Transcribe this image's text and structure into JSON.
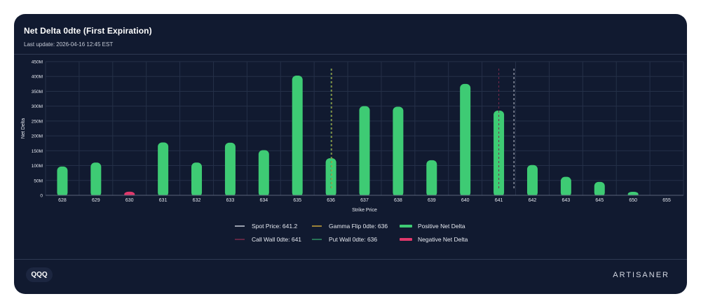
{
  "header": {
    "title": "Net Delta 0dte (First Expiration)",
    "subtitle": "Last update: 2026-04-16 12:45 EST"
  },
  "footer": {
    "ticker": "QQQ",
    "brand": "ARTISANER"
  },
  "colors": {
    "positive": "#3ecb74",
    "negative": "#e0386b",
    "spot": "#c9cdd8",
    "gamma_flip": "#caa53a",
    "call_wall": "#7a2a4a",
    "put_wall": "#2f8f63",
    "grid": "#253048"
  },
  "chart_data": {
    "type": "bar",
    "title": "Net Delta 0dte (First Expiration)",
    "xlabel": "Strike Price",
    "ylabel": "Net Delta",
    "ylim": [
      0,
      450
    ],
    "y_ticks": [
      "0",
      "50M",
      "100M",
      "150M",
      "200M",
      "250M",
      "300M",
      "350M",
      "400M",
      "450M"
    ],
    "categories": [
      "628",
      "629",
      "630",
      "631",
      "632",
      "633",
      "634",
      "635",
      "636",
      "637",
      "638",
      "639",
      "640",
      "641",
      "642",
      "643",
      "645",
      "650",
      "655"
    ],
    "values": [
      97,
      110,
      -12,
      178,
      110,
      177,
      152,
      403,
      125,
      300,
      298,
      118,
      375,
      285,
      102,
      62,
      45,
      8,
      0
    ],
    "units": "M",
    "vertical_lines": [
      {
        "name": "put_wall",
        "strike": 636
      },
      {
        "name": "gamma_flip",
        "strike": 636
      },
      {
        "name": "call_wall",
        "strike": 641
      },
      {
        "name": "spot",
        "strike": 641.2
      }
    ],
    "legend": [
      {
        "key": "spot",
        "label": "Spot Price: 641.2",
        "swatch": "line"
      },
      {
        "key": "gamma_flip",
        "label": "Gamma Flip 0dte: 636",
        "swatch": "line"
      },
      {
        "key": "positive",
        "label": "Positive Net Delta",
        "swatch": "bar"
      },
      {
        "key": "call_wall",
        "label": "Call Wall 0dte: 641",
        "swatch": "line"
      },
      {
        "key": "put_wall",
        "label": "Put Wall 0dte: 636",
        "swatch": "line"
      },
      {
        "key": "negative",
        "label": "Negative Net Delta",
        "swatch": "bar"
      }
    ]
  }
}
